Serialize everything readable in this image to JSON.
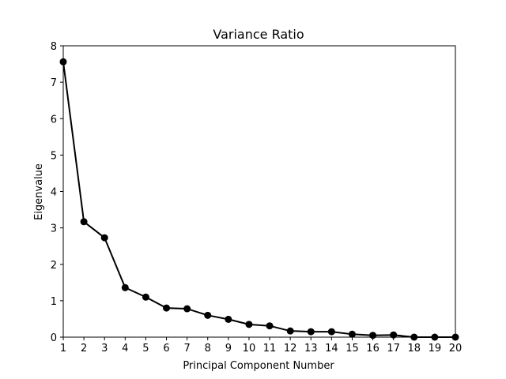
{
  "chart_data": {
    "type": "line",
    "title": "Variance Ratio",
    "xlabel": "Principal Component Number",
    "ylabel": "Eigenvalue",
    "xlim": [
      1,
      20
    ],
    "ylim": [
      0,
      8
    ],
    "xticks": [
      "1",
      "2",
      "3",
      "4",
      "5",
      "6",
      "7",
      "8",
      "9",
      "10",
      "11",
      "12",
      "13",
      "14",
      "15",
      "16",
      "17",
      "18",
      "19",
      "20"
    ],
    "yticks": [
      "0",
      "1",
      "2",
      "3",
      "4",
      "5",
      "6",
      "7",
      "8"
    ],
    "grid": false,
    "legend": "none",
    "line_color": "#000000",
    "marker": "circle",
    "series": [
      {
        "x": [
          1,
          2,
          3,
          4,
          5,
          6,
          7,
          8,
          9,
          10,
          11,
          12,
          13,
          14,
          15,
          16,
          17,
          18,
          19,
          20
        ],
        "values": [
          7.56,
          3.17,
          2.73,
          1.36,
          1.1,
          0.8,
          0.78,
          0.6,
          0.49,
          0.35,
          0.31,
          0.17,
          0.15,
          0.15,
          0.08,
          0.05,
          0.06,
          0.0,
          0.0,
          0.0
        ]
      }
    ]
  }
}
